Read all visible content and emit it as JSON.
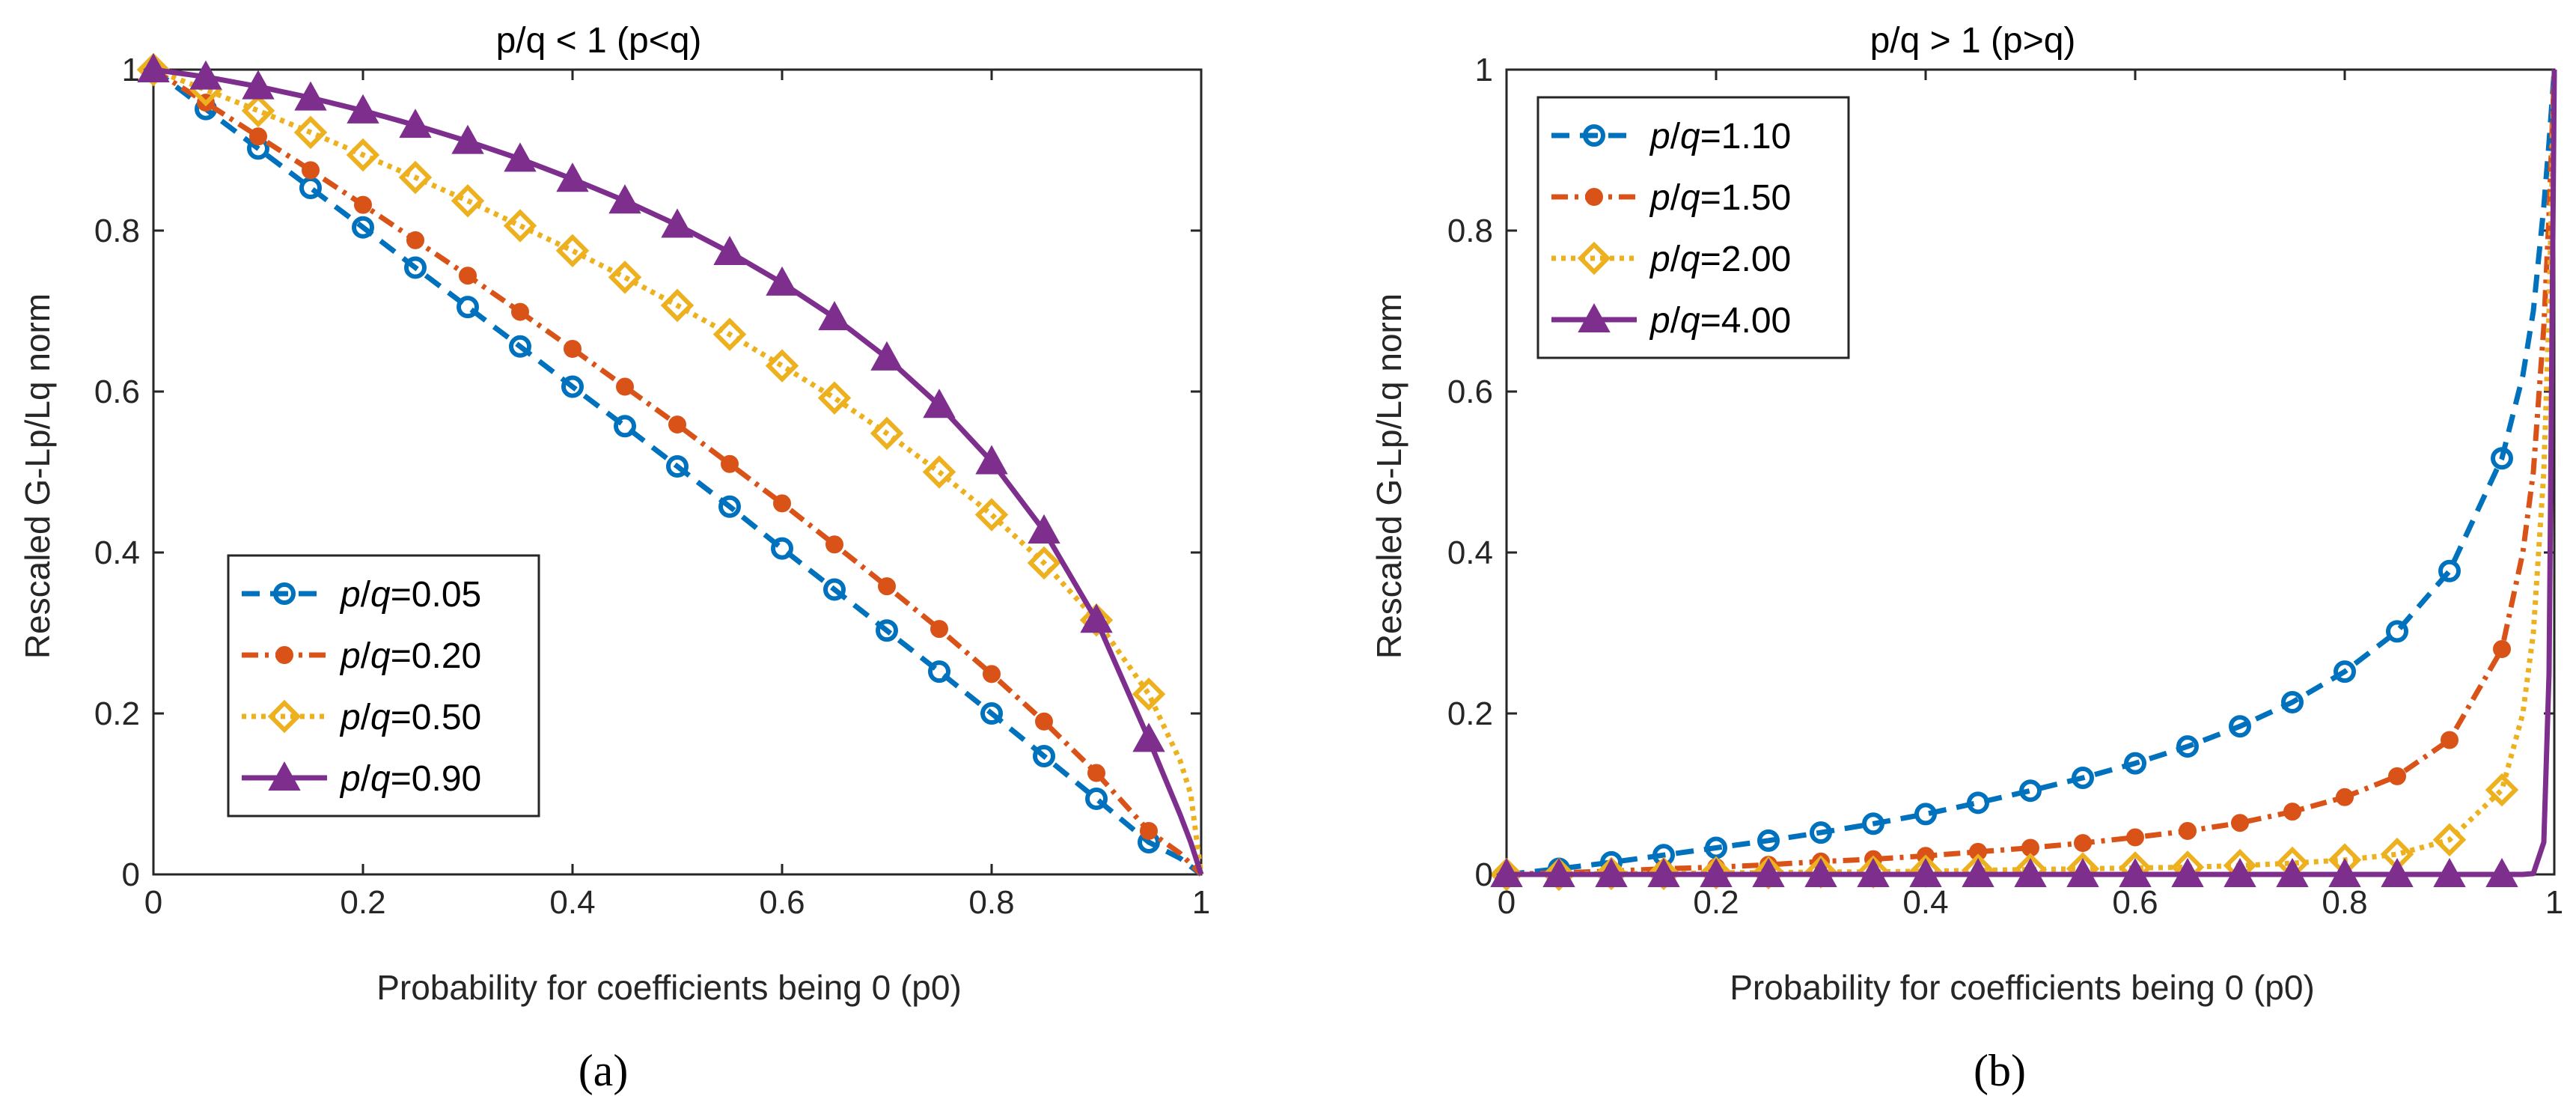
{
  "chart_data": [
    {
      "type": "line",
      "panel_label": "(a)",
      "title": "p/q < 1 (p<q)",
      "xlabel": "Probability for coefficients being 0 (p0)",
      "ylabel": "Rescaled G-Lp/Lq norm",
      "xlim": [
        0,
        1
      ],
      "ylim": [
        0,
        1
      ],
      "xticks": [
        0,
        0.2,
        0.4,
        0.6,
        0.8,
        1
      ],
      "xtick_labels": [
        "0",
        "0.2",
        "0.4",
        "0.6",
        "0.8",
        "1"
      ],
      "yticks": [
        0,
        0.2,
        0.4,
        0.6,
        0.8,
        1
      ],
      "ytick_labels": [
        "0",
        "0.2",
        "0.4",
        "0.6",
        "0.8",
        "1"
      ],
      "legend_position": "lower-left",
      "x": [
        0,
        0.05,
        0.1,
        0.15,
        0.2,
        0.25,
        0.3,
        0.35,
        0.4,
        0.45,
        0.5,
        0.55,
        0.6,
        0.65,
        0.7,
        0.75,
        0.8,
        0.85,
        0.9,
        0.95,
        0.98,
        0.99,
        1
      ],
      "marker_x": [
        0,
        0.05,
        0.1,
        0.15,
        0.2,
        0.25,
        0.3,
        0.35,
        0.4,
        0.45,
        0.5,
        0.55,
        0.6,
        0.65,
        0.7,
        0.75,
        0.8,
        0.85,
        0.9,
        0.95
      ],
      "series": [
        {
          "name": "p/q=0.05",
          "label_italic": "p",
          "label_sep": "/",
          "label_italic2": "q",
          "label_value": "=0.05",
          "color": "#0072BD",
          "dash": "24,14",
          "marker": "circle",
          "values": [
            1,
            0.951,
            0.902,
            0.853,
            0.804,
            0.754,
            0.705,
            0.656,
            0.606,
            0.557,
            0.507,
            0.457,
            0.405,
            0.354,
            0.303,
            0.252,
            0.2,
            0.147,
            0.094,
            0.04,
            0.02,
            0.01,
            0
          ]
        },
        {
          "name": "p/q=0.20",
          "label_italic": "p",
          "label_sep": "/",
          "label_italic2": "q",
          "label_value": "=0.20",
          "color": "#D95319",
          "dash": "22,9,5,9",
          "marker": "dot",
          "values": [
            1,
            0.959,
            0.917,
            0.875,
            0.832,
            0.788,
            0.744,
            0.699,
            0.653,
            0.606,
            0.559,
            0.51,
            0.461,
            0.41,
            0.358,
            0.305,
            0.249,
            0.19,
            0.126,
            0.054,
            0.026,
            0.013,
            0
          ]
        },
        {
          "name": "p/q=0.50",
          "label_italic": "p",
          "label_sep": "/",
          "label_italic2": "q",
          "label_value": "=0.50",
          "color": "#EDB120",
          "dash": "6,7",
          "marker": "diamond",
          "values": [
            1,
            0.975,
            0.949,
            0.922,
            0.894,
            0.866,
            0.837,
            0.806,
            0.775,
            0.742,
            0.707,
            0.671,
            0.632,
            0.592,
            0.548,
            0.5,
            0.447,
            0.387,
            0.316,
            0.224,
            0.141,
            0.1,
            0
          ]
        },
        {
          "name": "p/q=0.90",
          "label_italic": "p",
          "label_sep": "/",
          "label_italic2": "q",
          "label_value": "=0.90",
          "color": "#7E2F8E",
          "dash": "",
          "marker": "triangle",
          "values": [
            1,
            0.991,
            0.979,
            0.965,
            0.949,
            0.931,
            0.911,
            0.889,
            0.864,
            0.837,
            0.807,
            0.773,
            0.735,
            0.692,
            0.642,
            0.583,
            0.513,
            0.427,
            0.316,
            0.168,
            0.074,
            0.04,
            0
          ]
        }
      ]
    },
    {
      "type": "line",
      "panel_label": "(b)",
      "title": "p/q > 1 (p>q)",
      "xlabel": "Probability for coefficients being 0 (p0)",
      "ylabel": "Rescaled G-Lp/Lq norm",
      "xlim": [
        0,
        1
      ],
      "ylim": [
        0,
        1
      ],
      "xticks": [
        0,
        0.2,
        0.4,
        0.6,
        0.8,
        1
      ],
      "xtick_labels": [
        "0",
        "0.2",
        "0.4",
        "0.6",
        "0.8",
        "1"
      ],
      "yticks": [
        0,
        0.2,
        0.4,
        0.6,
        0.8,
        1
      ],
      "ytick_labels": [
        "0",
        "0.2",
        "0.4",
        "0.6",
        "0.8",
        "1"
      ],
      "legend_position": "top-left",
      "x": [
        0,
        0.05,
        0.1,
        0.15,
        0.2,
        0.25,
        0.3,
        0.35,
        0.4,
        0.45,
        0.5,
        0.55,
        0.6,
        0.65,
        0.7,
        0.75,
        0.8,
        0.85,
        0.9,
        0.95,
        0.97,
        0.98,
        0.99,
        0.995,
        1
      ],
      "marker_x": [
        0,
        0.05,
        0.1,
        0.15,
        0.2,
        0.25,
        0.3,
        0.35,
        0.4,
        0.45,
        0.5,
        0.55,
        0.6,
        0.65,
        0.7,
        0.75,
        0.8,
        0.85,
        0.9,
        0.95
      ],
      "series": [
        {
          "name": "p/q=1.10",
          "label_italic": "p",
          "label_sep": "/",
          "label_italic2": "q",
          "label_value": "=1.10",
          "color": "#0072BD",
          "dash": "24,14",
          "marker": "circle",
          "values": [
            0,
            0.007,
            0.015,
            0.024,
            0.033,
            0.042,
            0.052,
            0.063,
            0.075,
            0.089,
            0.104,
            0.12,
            0.138,
            0.159,
            0.184,
            0.214,
            0.252,
            0.302,
            0.377,
            0.517,
            0.62,
            0.7,
            0.83,
            0.91,
            1
          ]
        },
        {
          "name": "p/q=1.50",
          "label_italic": "p",
          "label_sep": "/",
          "label_italic2": "q",
          "label_value": "=1.50",
          "color": "#D95319",
          "dash": "22,9,5,9",
          "marker": "dot",
          "values": [
            0,
            0.002,
            0.004,
            0.007,
            0.009,
            0.012,
            0.016,
            0.019,
            0.023,
            0.028,
            0.033,
            0.039,
            0.046,
            0.054,
            0.064,
            0.078,
            0.096,
            0.122,
            0.167,
            0.28,
            0.4,
            0.5,
            0.68,
            0.82,
            1
          ]
        },
        {
          "name": "p/q=2.00",
          "label_italic": "p",
          "label_sep": "/",
          "label_italic2": "q",
          "label_value": "=2.00",
          "color": "#EDB120",
          "dash": "6,7",
          "marker": "diamond",
          "values": [
            0,
            0,
            0.001,
            0.001,
            0.002,
            0.002,
            0.003,
            0.003,
            0.004,
            0.005,
            0.006,
            0.007,
            0.008,
            0.009,
            0.011,
            0.014,
            0.018,
            0.025,
            0.043,
            0.105,
            0.2,
            0.3,
            0.5,
            0.7,
            1
          ]
        },
        {
          "name": "p/q=4.00",
          "label_italic": "p",
          "label_sep": "/",
          "label_italic2": "q",
          "label_value": "=4.00",
          "color": "#7E2F8E",
          "dash": "",
          "marker": "triangle",
          "values": [
            0,
            0,
            0,
            0,
            0,
            0,
            0,
            0,
            0,
            0,
            0,
            0,
            0,
            0,
            0,
            0,
            0,
            0,
            0,
            0,
            0,
            0.001,
            0.04,
            0.25,
            1
          ]
        }
      ]
    }
  ]
}
